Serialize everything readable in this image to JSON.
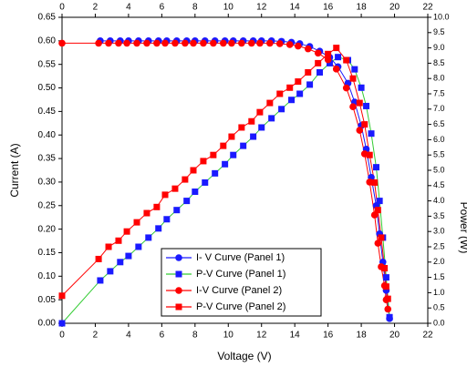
{
  "chart_data": {
    "type": "line",
    "x_label": "Voltage (V)",
    "y_label": "Current (A)",
    "y2_label": "Power (W)",
    "xlim": [
      0,
      22
    ],
    "xticks": [
      0,
      2,
      4,
      6,
      8,
      10,
      12,
      14,
      16,
      18,
      20,
      22
    ],
    "ylim": [
      0,
      0.65
    ],
    "yticks": [
      {
        "value": 0,
        "label": "0.00"
      },
      0.05,
      {
        "value": 0.1,
        "label": "0.10"
      },
      0.15,
      {
        "value": 0.2,
        "label": "0.20"
      },
      0.25,
      {
        "value": 0.3,
        "label": "0.30"
      },
      0.35,
      {
        "value": 0.4,
        "label": "0.40"
      },
      0.45,
      {
        "value": 0.5,
        "label": "0.50"
      },
      0.55,
      {
        "value": 0.6,
        "label": "0.60"
      },
      0.65
    ],
    "y2lim": [
      0,
      10
    ],
    "y2ticks": [
      {
        "value": 0,
        "label": "0.0"
      },
      0.5,
      {
        "value": 1,
        "label": "1.0"
      },
      1.5,
      {
        "value": 2,
        "label": "2.0"
      },
      2.5,
      {
        "value": 3,
        "label": "3.0"
      },
      3.5,
      {
        "value": 4,
        "label": "4.0"
      },
      4.5,
      {
        "value": 5,
        "label": "5.0"
      },
      5.5,
      {
        "value": 6,
        "label": "6.0"
      },
      6.5,
      {
        "value": 7,
        "label": "7.0"
      },
      7.5,
      {
        "value": 8,
        "label": "8.0"
      },
      8.5,
      {
        "value": 9,
        "label": "9.0"
      },
      9.5,
      {
        "value": 10,
        "label": "10.0"
      }
    ],
    "legend_position": "lower-center",
    "series": [
      {
        "name": "I- V Curve (Panel 1)",
        "color": "#1a1aff",
        "line_color": "#1a1aff",
        "marker": "circle",
        "x": [
          2.3,
          2.9,
          3.5,
          4,
          4.6,
          5.2,
          5.8,
          6.3,
          6.9,
          7.5,
          8,
          8.6,
          9.2,
          9.8,
          10.3,
          10.9,
          11.5,
          12,
          12.6,
          13.2,
          13.8,
          14.3,
          14.9,
          15.5,
          16.1,
          16.6,
          17.2,
          17.6,
          18,
          18.3,
          18.6,
          18.9,
          19.1,
          19.3,
          19.5,
          19.7
        ],
        "values": [
          0.6,
          0.6,
          0.6,
          0.6,
          0.6,
          0.6,
          0.6,
          0.6,
          0.6,
          0.6,
          0.6,
          0.6,
          0.6,
          0.6,
          0.6,
          0.6,
          0.6,
          0.6,
          0.6,
          0.599,
          0.597,
          0.594,
          0.588,
          0.578,
          0.565,
          0.545,
          0.51,
          0.47,
          0.42,
          0.37,
          0.31,
          0.25,
          0.19,
          0.13,
          0.07,
          0.01
        ]
      },
      {
        "name": "P-V Curve (Panel 1)",
        "color": "#1a1aff",
        "line_color": "#33cc33",
        "marker": "square",
        "axis": "y2",
        "x": [
          0,
          2.3,
          2.9,
          3.5,
          4,
          4.6,
          5.2,
          5.8,
          6.3,
          6.9,
          7.5,
          8,
          8.6,
          9.2,
          9.8,
          10.3,
          10.9,
          11.5,
          12,
          12.6,
          13.2,
          13.8,
          14.3,
          14.9,
          15.5,
          16.1,
          16.6,
          17.2,
          17.6,
          18,
          18.3,
          18.6,
          18.9,
          19.1,
          19.3,
          19.5,
          19.7
        ],
        "values": [
          0,
          1.4,
          1.7,
          2.0,
          2.2,
          2.5,
          2.8,
          3.1,
          3.4,
          3.7,
          4.0,
          4.3,
          4.6,
          4.9,
          5.2,
          5.5,
          5.8,
          6.1,
          6.4,
          6.7,
          7.0,
          7.3,
          7.5,
          7.8,
          8.2,
          8.5,
          8.7,
          8.6,
          8.3,
          7.7,
          7.1,
          6.2,
          5.1,
          4.0,
          2.8,
          1.5,
          0.2
        ]
      },
      {
        "name": "I-V Curve (Panel 2)",
        "color": "#ff0000",
        "line_color": "#ff0000",
        "marker": "circle",
        "x": [
          0,
          2.2,
          2.8,
          3.4,
          3.9,
          4.5,
          5.1,
          5.7,
          6.2,
          6.8,
          7.4,
          7.9,
          8.5,
          9.1,
          9.7,
          10.2,
          10.8,
          11.4,
          11.9,
          12.5,
          13.1,
          13.7,
          14.2,
          14.8,
          15.4,
          16,
          16.5,
          17.1,
          17.5,
          17.9,
          18.2,
          18.5,
          18.8,
          19,
          19.2,
          19.4,
          19.5,
          19.6
        ],
        "values": [
          0.595,
          0.595,
          0.595,
          0.595,
          0.595,
          0.595,
          0.595,
          0.595,
          0.595,
          0.595,
          0.595,
          0.595,
          0.595,
          0.595,
          0.595,
          0.595,
          0.595,
          0.595,
          0.595,
          0.595,
          0.594,
          0.592,
          0.589,
          0.583,
          0.574,
          0.56,
          0.54,
          0.5,
          0.46,
          0.41,
          0.36,
          0.3,
          0.23,
          0.17,
          0.12,
          0.08,
          0.05,
          0.03
        ]
      },
      {
        "name": "P-V  Curve (Panel 2)",
        "color": "#ff0000",
        "line_color": "#ff0000",
        "marker": "square",
        "axis": "y2",
        "x": [
          0,
          2.2,
          2.8,
          3.4,
          3.9,
          4.5,
          5.1,
          5.7,
          6.2,
          6.8,
          7.4,
          7.9,
          8.5,
          9.1,
          9.7,
          10.2,
          10.8,
          11.4,
          11.9,
          12.5,
          13.1,
          13.7,
          14.2,
          14.8,
          15.4,
          16,
          16.5,
          17.1,
          17.5,
          17.9,
          18.2,
          18.5,
          18.8,
          19,
          19.2,
          19.4,
          19.5,
          19.6
        ],
        "values": [
          0.9,
          2.1,
          2.5,
          2.7,
          3.0,
          3.3,
          3.6,
          3.8,
          4.2,
          4.4,
          4.7,
          5.0,
          5.3,
          5.5,
          5.8,
          6.1,
          6.4,
          6.6,
          6.9,
          7.2,
          7.5,
          7.7,
          7.9,
          8.2,
          8.5,
          8.8,
          9.0,
          8.6,
          8.0,
          7.2,
          6.5,
          5.5,
          4.6,
          3.7,
          2.8,
          1.8,
          1.2,
          0.8
        ]
      }
    ]
  }
}
